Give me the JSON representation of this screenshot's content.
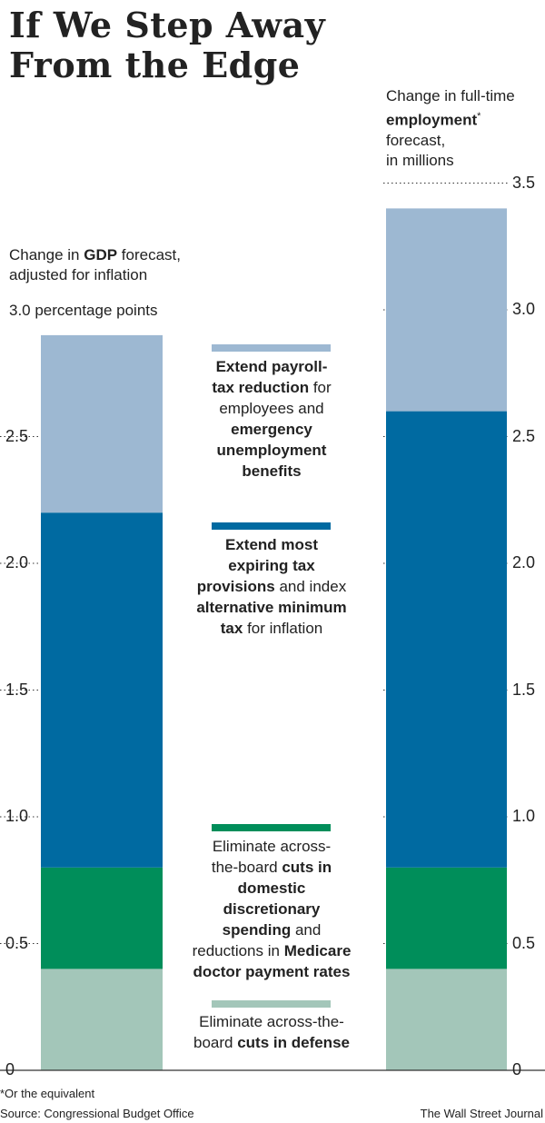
{
  "title_line1": "If We Step Away",
  "title_line2": "From the Edge",
  "left_label": {
    "pre": "Change in ",
    "bold": "GDP",
    "post": " forecast,",
    "line2": "adjusted for inflation",
    "unit_line": "3.0 percentage points"
  },
  "right_label": {
    "line1": "Change in full-time",
    "bold": "employment",
    "star": "*",
    "line3": "forecast,",
    "line4": "in millions"
  },
  "colors": {
    "defense": "#a3c6b9",
    "domestic": "#008e5a",
    "tax": "#006aa1",
    "payroll": "#9db8d2",
    "grid": "#333333"
  },
  "legend": [
    {
      "key": "payroll",
      "parts": [
        [
          "Extend payroll-",
          true
        ],
        [
          "\n",
          false
        ],
        [
          "tax reduction",
          true
        ],
        [
          " for",
          false
        ],
        [
          "\n",
          false
        ],
        [
          "employees and",
          false
        ],
        [
          "\n",
          false
        ],
        [
          "emergency",
          true
        ],
        [
          "\n",
          false
        ],
        [
          "unemployment",
          true
        ],
        [
          "\n",
          false
        ],
        [
          "benefits",
          true
        ]
      ]
    },
    {
      "key": "tax",
      "parts": [
        [
          "Extend most",
          true
        ],
        [
          "\n",
          false
        ],
        [
          "expiring tax",
          true
        ],
        [
          "\n",
          false
        ],
        [
          "provisions",
          true
        ],
        [
          " and index",
          false
        ],
        [
          "\n",
          false
        ],
        [
          "alternative minimum",
          true
        ],
        [
          "\n",
          false
        ],
        [
          "tax",
          true
        ],
        [
          " for inflation",
          false
        ]
      ]
    },
    {
      "key": "domestic",
      "parts": [
        [
          "Eliminate across-",
          false
        ],
        [
          "\n",
          false
        ],
        [
          "the-board ",
          false
        ],
        [
          "cuts in",
          true
        ],
        [
          "\n",
          false
        ],
        [
          "domestic",
          true
        ],
        [
          "\n",
          false
        ],
        [
          "discretionary",
          true
        ],
        [
          "\n",
          false
        ],
        [
          "spending",
          true
        ],
        [
          " and",
          false
        ],
        [
          "\n",
          false
        ],
        [
          "reductions in ",
          false
        ],
        [
          "Medicare",
          true
        ],
        [
          "\n",
          false
        ],
        [
          "doctor payment rates",
          true
        ]
      ]
    },
    {
      "key": "defense",
      "parts": [
        [
          "Eliminate across-the-",
          false
        ],
        [
          "\n",
          false
        ],
        [
          "board ",
          false
        ],
        [
          "cuts in defense",
          true
        ]
      ]
    }
  ],
  "chart_data": [
    {
      "type": "bar",
      "stacked": true,
      "title": "Change in GDP forecast, adjusted for inflation",
      "ylabel": "percentage points",
      "ylim": [
        0,
        3.0
      ],
      "yticks": [
        "0",
        "0.5",
        "1.0",
        "1.5",
        "2.0",
        "2.5",
        "3.0"
      ],
      "series": [
        {
          "name": "Eliminate across-the-board cuts in defense",
          "key": "defense",
          "values": [
            0.4
          ]
        },
        {
          "name": "Eliminate across-the-board cuts in domestic discretionary spending and reductions in Medicare doctor payment rates",
          "key": "domestic",
          "values": [
            0.4
          ]
        },
        {
          "name": "Extend most expiring tax provisions and index alternative minimum tax for inflation",
          "key": "tax",
          "values": [
            1.4
          ]
        },
        {
          "name": "Extend payroll-tax reduction for employees and emergency unemployment benefits",
          "key": "payroll",
          "values": [
            0.7
          ]
        }
      ]
    },
    {
      "type": "bar",
      "stacked": true,
      "title": "Change in full-time employment forecast, in millions",
      "ylim": [
        0,
        3.5
      ],
      "yticks": [
        "0",
        "0.5",
        "1.0",
        "1.5",
        "2.0",
        "2.5",
        "3.0",
        "3.5"
      ],
      "series": [
        {
          "name": "Eliminate across-the-board cuts in defense",
          "key": "defense",
          "values": [
            0.4
          ]
        },
        {
          "name": "Eliminate across-the-board cuts in domestic discretionary spending and reductions in Medicare doctor payment rates",
          "key": "domestic",
          "values": [
            0.4
          ]
        },
        {
          "name": "Extend most expiring tax provisions and index alternative minimum tax for inflation",
          "key": "tax",
          "values": [
            1.8
          ]
        },
        {
          "name": "Extend payroll-tax reduction for employees and emergency unemployment benefits",
          "key": "payroll",
          "values": [
            0.8
          ]
        }
      ]
    }
  ],
  "footnote": "*Or the equivalent",
  "source": "Source: Congressional Budget Office",
  "credit": "The Wall Street Journal"
}
